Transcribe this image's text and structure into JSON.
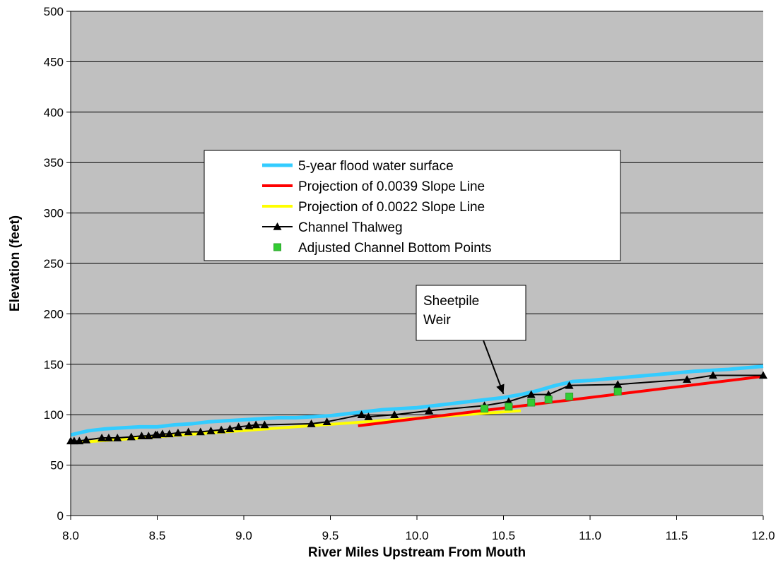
{
  "chart_data": {
    "type": "line",
    "title": "",
    "xlabel": "River Miles Upstream From Mouth",
    "ylabel": "Elevation (feet)",
    "xlim": [
      8.0,
      12.0
    ],
    "ylim": [
      0,
      500
    ],
    "x_ticks": [
      "8.0",
      "8.5",
      "9.0",
      "9.5",
      "10.0",
      "10.5",
      "11.0",
      "11.5",
      "12.0"
    ],
    "x_tick_values": [
      8.0,
      8.5,
      9.0,
      9.5,
      10.0,
      10.5,
      11.0,
      11.5,
      12.0
    ],
    "y_ticks": [
      "0",
      "50",
      "100",
      "150",
      "200",
      "250",
      "300",
      "350",
      "400",
      "450",
      "500"
    ],
    "y_tick_values": [
      0,
      50,
      100,
      150,
      200,
      250,
      300,
      350,
      400,
      450,
      500
    ],
    "grid": "horizontal",
    "plot_background": "#c0c0c0",
    "legend_position": "center",
    "series": [
      {
        "name": "5-year flood water surface",
        "color": "#33ccff",
        "style": "line",
        "x": [
          8.0,
          8.1,
          8.2,
          8.3,
          8.4,
          8.5,
          8.6,
          8.7,
          8.8,
          8.9,
          9.0,
          9.1,
          9.2,
          9.3,
          9.4,
          9.5,
          9.6,
          9.7,
          9.8,
          9.9,
          10.0,
          10.1,
          10.2,
          10.3,
          10.4,
          10.5,
          10.6,
          10.7,
          10.8,
          10.9,
          11.0,
          11.2,
          11.4,
          11.6,
          11.8,
          12.0
        ],
        "y": [
          80,
          84,
          86,
          87,
          88,
          88,
          90,
          91,
          93,
          94,
          95,
          96,
          97,
          97,
          98,
          99,
          101,
          103,
          105,
          106,
          107,
          109,
          111,
          113,
          115,
          117,
          120,
          124,
          129,
          133,
          134,
          137,
          140,
          143,
          145,
          148
        ]
      },
      {
        "name": "Projection of 0.0039 Slope Line",
        "color": "#ff0000",
        "style": "line",
        "x": [
          9.66,
          12.0
        ],
        "y": [
          89,
          138
        ]
      },
      {
        "name": "Projection of 0.0022 Slope Line",
        "color": "#ffff00",
        "style": "line",
        "x": [
          8.0,
          10.6
        ],
        "y": [
          72,
          104
        ]
      },
      {
        "name": "Channel Thalweg",
        "color": "#000000",
        "style": "line-triangle",
        "x": [
          8.0,
          8.02,
          8.05,
          8.09,
          8.18,
          8.22,
          8.27,
          8.35,
          8.41,
          8.45,
          8.49,
          8.5,
          8.53,
          8.57,
          8.62,
          8.68,
          8.75,
          8.81,
          8.87,
          8.92,
          8.97,
          9.03,
          9.07,
          9.12,
          9.39,
          9.48,
          9.68,
          9.72,
          9.87,
          10.07,
          10.39,
          10.53,
          10.66,
          10.76,
          10.88,
          11.16,
          11.56,
          11.71,
          12.0
        ],
        "y": [
          74,
          74,
          74,
          75,
          77,
          77,
          77,
          78,
          79,
          79,
          80,
          80,
          81,
          81,
          82,
          83,
          83,
          84,
          85,
          86,
          88,
          89,
          90,
          90,
          91,
          93,
          100,
          98,
          100,
          104,
          109,
          113,
          120,
          120,
          129,
          130,
          135,
          139,
          139
        ]
      },
      {
        "name": "Adjusted Channel Bottom Points",
        "color": "#33cc33",
        "style": "marker-square",
        "x": [
          10.39,
          10.53,
          10.66,
          10.76,
          10.88,
          11.16
        ],
        "y": [
          106,
          108,
          112,
          115,
          118,
          123
        ]
      }
    ],
    "annotations": [
      {
        "text_lines": [
          "Sheetpile",
          "Weir"
        ],
        "arrow_to": [
          10.5,
          115
        ],
        "box_anchor": [
          9.99,
          205
        ]
      }
    ]
  }
}
